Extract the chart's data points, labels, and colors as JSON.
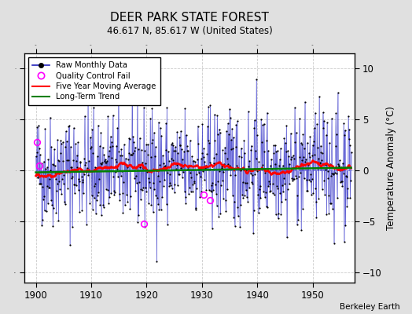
{
  "title": "DEER PARK STATE FOREST",
  "subtitle": "46.617 N, 85.617 W (United States)",
  "ylabel": "Temperature Anomaly (°C)",
  "attribution": "Berkeley Earth",
  "xlim": [
    1898.0,
    1957.5
  ],
  "ylim": [
    -11.0,
    11.5
  ],
  "yticks": [
    -10,
    -5,
    0,
    5,
    10
  ],
  "xticks": [
    1900,
    1910,
    1920,
    1930,
    1940,
    1950
  ],
  "bg_color": "#e0e0e0",
  "plot_bg_color": "#ffffff",
  "seed": 42,
  "n_years": 57,
  "start_year": 1900,
  "months_per_year": 12,
  "qc_fail_points": [
    [
      1900.17,
      2.8
    ],
    [
      1900.67,
      0.5
    ],
    [
      1919.5,
      -5.2
    ],
    [
      1930.25,
      -2.4
    ],
    [
      1931.5,
      -2.9
    ]
  ]
}
